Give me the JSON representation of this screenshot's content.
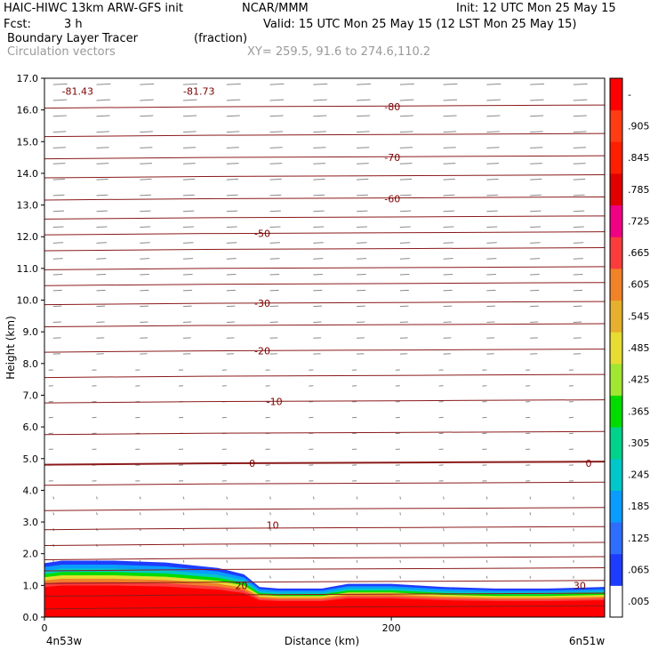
{
  "header": {
    "model": "HAIC-HIWC 13km ARW-GFS init",
    "org": "NCAR/MMM",
    "init": "Init: 12 UTC Mon 25 May 15",
    "fcst_label": "Fcst:",
    "fcst_value": "3 h",
    "valid": "Valid: 15 UTC Mon 25 May 15 (12 LST Mon 25 May 15)",
    "field": "Boundary Layer Tracer",
    "field_units": "(fraction)",
    "vectors": "Circulation vectors",
    "xy": "XY= 259.5, 91.6 to 274.6,110.2"
  },
  "chart_data": {
    "type": "heatmap",
    "ylabel": "Height (km)",
    "xlabel": "Distance (km)",
    "ylim": [
      0,
      17
    ],
    "xlim": [
      0,
      323
    ],
    "yticks": [
      "0.0",
      "1.0",
      "2.0",
      "3.0",
      "4.0",
      "5.0",
      "6.0",
      "7.0",
      "8.0",
      "9.0",
      "10.0",
      "11.0",
      "12.0",
      "13.0",
      "14.0",
      "15.0",
      "16.0",
      "17.0"
    ],
    "xticks": [
      {
        "value": 0,
        "label": "0"
      },
      {
        "value": 200,
        "label": "200"
      }
    ],
    "x_endpoints": {
      "left": "4n53w",
      "right": "6n51w"
    },
    "colorbar": {
      "labels": [
        ".005",
        ".065",
        ".125",
        ".185",
        ".245",
        ".305",
        ".365",
        ".425",
        ".485",
        ".545",
        ".605",
        ".665",
        ".725",
        ".785",
        ".845",
        ".905",
        "-"
      ],
      "colors": [
        "#ffffff",
        "#1e3cff",
        "#2e6eff",
        "#0a9cff",
        "#00c8c8",
        "#00d28c",
        "#00dc00",
        "#a0e632",
        "#e6dc32",
        "#e6af2d",
        "#f08228",
        "#fa3c3c",
        "#f00082",
        "#e10000",
        "#ff1e00",
        "#ff3c14",
        "#ff0000"
      ]
    },
    "boundary_layer_top_km": [
      [
        0,
        1.7
      ],
      [
        10,
        1.78
      ],
      [
        40,
        1.78
      ],
      [
        70,
        1.72
      ],
      [
        100,
        1.55
      ],
      [
        115,
        1.35
      ],
      [
        124,
        0.95
      ],
      [
        135,
        0.9
      ],
      [
        160,
        0.9
      ],
      [
        175,
        1.05
      ],
      [
        200,
        1.05
      ],
      [
        230,
        0.95
      ],
      [
        260,
        0.9
      ],
      [
        290,
        0.9
      ],
      [
        323,
        0.95
      ]
    ],
    "temperature_contours": [
      {
        "value": "-81.43",
        "x": 10,
        "y": 16.6
      },
      {
        "value": "-81.73",
        "x": 80,
        "y": 16.6
      },
      {
        "value": "-80",
        "x": 196,
        "y": 16.1
      },
      {
        "value": "-70",
        "x": 196,
        "y": 14.5
      },
      {
        "value": "-60",
        "x": 196,
        "y": 13.2
      },
      {
        "value": "-50",
        "x": 121,
        "y": 12.1
      },
      {
        "value": "-30",
        "x": 121,
        "y": 9.9
      },
      {
        "value": "-20",
        "x": 121,
        "y": 8.4
      },
      {
        "value": "-10",
        "x": 128,
        "y": 6.8
      },
      {
        "value": "0",
        "x": 118,
        "y": 4.85
      },
      {
        "value": "0",
        "x": 312,
        "y": 4.85
      },
      {
        "value": "10",
        "x": 128,
        "y": 2.9
      },
      {
        "value": "20",
        "x": 110,
        "y": 1.0
      },
      {
        "value": "30",
        "x": 305,
        "y": 1.0
      }
    ],
    "contour_levels_km": [
      0.3,
      0.7,
      1.1,
      1.5,
      1.85,
      2.3,
      2.8,
      3.4,
      4.2,
      4.85,
      5.8,
      6.8,
      7.6,
      8.4,
      9.2,
      9.9,
      10.5,
      11.0,
      11.6,
      12.1,
      12.6,
      13.2,
      13.9,
      14.5,
      15.2,
      16.1
    ]
  }
}
